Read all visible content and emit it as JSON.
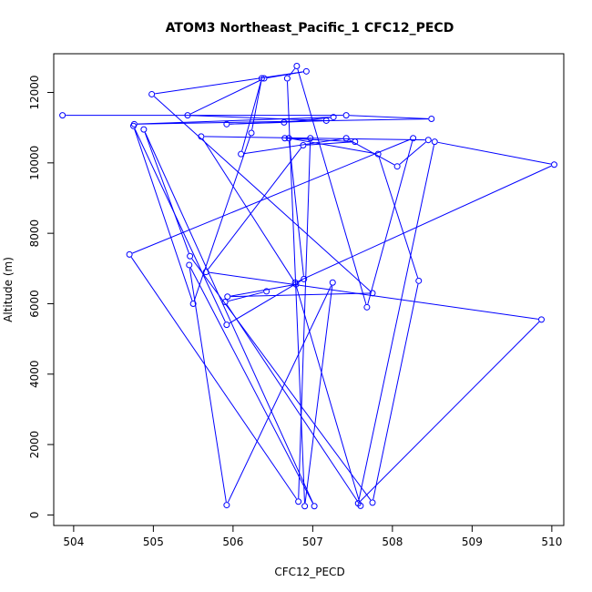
{
  "chart_data": {
    "type": "scatter",
    "title": "ATOM3 Northeast_Pacific_1 CFC12_PECD",
    "xlabel": "CFC12_PECD",
    "ylabel": "Altitude (m)",
    "xlim": [
      503.75,
      510.15
    ],
    "ylim": [
      -300,
      13100
    ],
    "xticks": [
      504,
      505,
      506,
      507,
      508,
      509,
      510
    ],
    "yticks": [
      0,
      2000,
      4000,
      6000,
      8000,
      10000,
      12000
    ],
    "grid": false,
    "color": "#0000ff",
    "marker": "open-circle",
    "connected": true,
    "x": [
      503.86,
      507.42,
      508.49,
      504.76,
      507.26,
      506.64,
      505.92,
      507.17,
      505.43,
      506.39,
      506.92,
      504.98,
      507.75,
      505.93,
      506.79,
      505.6,
      508.45,
      508.06,
      507.42,
      506.1,
      506.36,
      506.23,
      505.5,
      504.75,
      505.92,
      506.89,
      506.7,
      507.82,
      508.33,
      507.75,
      505.46,
      504.88,
      507.02,
      505.45,
      505.92,
      507.25,
      506.9,
      506.68,
      506.8,
      507.68,
      508.26,
      504.7,
      506.82,
      506.97,
      506.65,
      507.53,
      506.88,
      505.66,
      509.87,
      507.57,
      508.53,
      510.03,
      506.78,
      507.6,
      505.9,
      506.42
    ],
    "y": [
      11350,
      11350,
      11250,
      11100,
      11300,
      11150,
      11100,
      11200,
      11350,
      12400,
      12600,
      11950,
      6300,
      6200,
      6550,
      10750,
      10650,
      9900,
      10700,
      10250,
      12400,
      10850,
      6000,
      11050,
      5400,
      6700,
      10700,
      10250,
      6650,
      350,
      7350,
      10950,
      250,
      7100,
      280,
      6600,
      250,
      12400,
      12750,
      5900,
      10700,
      7400,
      380,
      10700,
      10700,
      10600,
      10500,
      6900,
      5550,
      330,
      10600,
      9950,
      6600,
      260,
      6050,
      6350
    ]
  }
}
